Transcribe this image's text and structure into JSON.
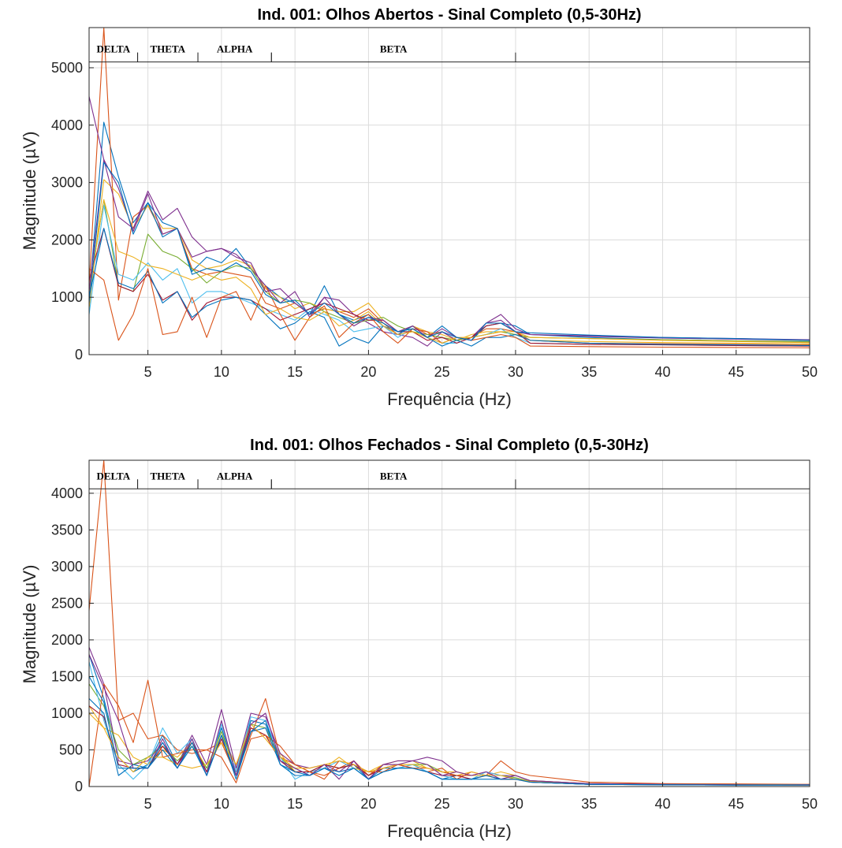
{
  "chart_data": [
    {
      "type": "line",
      "title": "Ind. 001: Olhos Abertos - Sinal Completo (0,5-30Hz)",
      "xlabel": "Frequência (Hz)",
      "ylabel": "Magnitude (µV)",
      "xlim": [
        1,
        50
      ],
      "ylim": [
        0,
        5700
      ],
      "xticks": [
        5,
        10,
        15,
        20,
        25,
        30,
        35,
        40,
        45,
        50
      ],
      "yticks": [
        0,
        1000,
        2000,
        3000,
        4000,
        5000
      ],
      "grid": true,
      "bands": [
        {
          "label": "DELTA",
          "from": 1,
          "to": 4.3
        },
        {
          "label": "THETA",
          "from": 4.3,
          "to": 8.4
        },
        {
          "label": "ALPHA",
          "from": 8.4,
          "to": 13.4
        },
        {
          "label": "BETA",
          "from": 13.4,
          "to": 30
        }
      ],
      "band_line_y": 5100,
      "x": [
        1,
        2,
        3,
        4,
        5,
        6,
        7,
        8,
        9,
        10,
        11,
        12,
        13,
        14,
        15,
        16,
        17,
        18,
        19,
        20,
        21,
        22,
        23,
        24,
        25,
        26,
        27,
        28,
        29,
        30,
        31,
        35,
        40,
        45,
        50
      ],
      "series": [
        {
          "color": "#0072BD",
          "values": [
            1000,
            4050,
            3100,
            2300,
            2650,
            2300,
            2200,
            1450,
            1700,
            1600,
            1850,
            1500,
            1200,
            1000,
            900,
            700,
            1200,
            700,
            600,
            700,
            500,
            400,
            450,
            300,
            500,
            300,
            250,
            500,
            550,
            500,
            350,
            300,
            260,
            240,
            220
          ]
        },
        {
          "color": "#D95319",
          "values": [
            1200,
            5700,
            950,
            2400,
            2600,
            2100,
            2200,
            1500,
            1400,
            1450,
            1400,
            1350,
            900,
            800,
            900,
            700,
            800,
            750,
            650,
            800,
            550,
            350,
            500,
            350,
            400,
            250,
            300,
            450,
            450,
            400,
            250,
            200,
            190,
            180,
            170
          ]
        },
        {
          "color": "#EDB120",
          "values": [
            800,
            3050,
            2800,
            2200,
            2600,
            2200,
            2200,
            1650,
            1500,
            1550,
            1650,
            1550,
            1150,
            1000,
            800,
            900,
            800,
            750,
            750,
            900,
            600,
            400,
            500,
            400,
            350,
            250,
            350,
            400,
            400,
            350,
            250,
            230,
            210,
            200,
            190
          ]
        },
        {
          "color": "#7E2F8E",
          "values": [
            4500,
            3400,
            2400,
            2200,
            2850,
            2350,
            2550,
            2050,
            1800,
            1850,
            1750,
            1500,
            1200,
            900,
            1100,
            650,
            1000,
            950,
            700,
            550,
            400,
            350,
            300,
            150,
            400,
            250,
            300,
            550,
            700,
            450,
            350,
            330,
            300,
            280,
            260
          ]
        },
        {
          "color": "#77AC30",
          "values": [
            1100,
            2700,
            1200,
            1100,
            2100,
            1800,
            1700,
            1500,
            1250,
            1450,
            1550,
            1500,
            1100,
            900,
            950,
            900,
            750,
            650,
            550,
            600,
            650,
            500,
            400,
            350,
            300,
            250,
            300,
            350,
            400,
            350,
            300,
            280,
            260,
            240,
            230
          ]
        },
        {
          "color": "#4DBEEE",
          "values": [
            700,
            2600,
            1400,
            1300,
            1600,
            1300,
            1500,
            900,
            1100,
            1100,
            1000,
            900,
            800,
            700,
            600,
            800,
            700,
            600,
            400,
            450,
            500,
            300,
            450,
            300,
            200,
            200,
            300,
            350,
            450,
            300,
            200,
            180,
            170,
            160,
            150
          ]
        },
        {
          "color": "#A2142F",
          "values": [
            1300,
            2200,
            1200,
            1100,
            1400,
            950,
            1100,
            600,
            900,
            1000,
            1000,
            950,
            800,
            600,
            700,
            800,
            900,
            800,
            700,
            600,
            600,
            400,
            400,
            250,
            300,
            200,
            300,
            500,
            550,
            400,
            200,
            180,
            170,
            160,
            150
          ]
        },
        {
          "color": "#0072BD",
          "values": [
            1000,
            2200,
            1250,
            1150,
            1450,
            900,
            1100,
            650,
            850,
            950,
            1000,
            950,
            700,
            450,
            550,
            750,
            650,
            150,
            300,
            200,
            500,
            350,
            500,
            300,
            150,
            250,
            150,
            300,
            300,
            350,
            250,
            200,
            180,
            170,
            160
          ]
        },
        {
          "color": "#D95319",
          "values": [
            1500,
            1300,
            250,
            700,
            1500,
            350,
            400,
            1000,
            300,
            1000,
            1100,
            600,
            1200,
            700,
            250,
            650,
            850,
            300,
            550,
            700,
            400,
            200,
            450,
            400,
            200,
            300,
            250,
            300,
            350,
            300,
            150,
            140,
            130,
            125,
            120
          ]
        },
        {
          "color": "#EDB120",
          "values": [
            1100,
            2700,
            1800,
            1700,
            1550,
            1500,
            1400,
            1300,
            1400,
            1300,
            1350,
            1150,
            700,
            800,
            650,
            600,
            750,
            500,
            600,
            750,
            500,
            350,
            400,
            300,
            200,
            300,
            300,
            350,
            400,
            400,
            300,
            280,
            250,
            230,
            210
          ]
        },
        {
          "color": "#7E2F8E",
          "values": [
            1100,
            3400,
            2900,
            2150,
            2800,
            2100,
            2200,
            1700,
            1800,
            1850,
            1700,
            1600,
            1100,
            1150,
            900,
            700,
            1000,
            700,
            500,
            650,
            600,
            400,
            500,
            300,
            450,
            300,
            250,
            550,
            600,
            400,
            350,
            320,
            290,
            270,
            250
          ]
        },
        {
          "color": "#0072BD",
          "values": [
            900,
            3350,
            3000,
            2100,
            2650,
            2050,
            2200,
            1400,
            1500,
            1450,
            1600,
            1450,
            1050,
            900,
            950,
            700,
            900,
            700,
            550,
            650,
            550,
            400,
            450,
            300,
            400,
            300,
            250,
            550,
            550,
            400,
            380,
            340,
            300,
            280,
            250
          ]
        }
      ]
    },
    {
      "type": "line",
      "title": "Ind. 001: Olhos Fechados - Sinal Completo (0,5-30Hz)",
      "xlabel": "Frequência (Hz)",
      "ylabel": "Magnitude (µV)",
      "xlim": [
        1,
        50
      ],
      "ylim": [
        0,
        4450
      ],
      "xticks": [
        5,
        10,
        15,
        20,
        25,
        30,
        35,
        40,
        45,
        50
      ],
      "yticks": [
        0,
        500,
        1000,
        1500,
        2000,
        2500,
        3000,
        3500,
        4000
      ],
      "grid": true,
      "bands": [
        {
          "label": "DELTA",
          "from": 1,
          "to": 4.3
        },
        {
          "label": "THETA",
          "from": 4.3,
          "to": 8.4
        },
        {
          "label": "ALPHA",
          "from": 8.4,
          "to": 13.4
        },
        {
          "label": "BETA",
          "from": 13.4,
          "to": 30
        }
      ],
      "band_line_y": 4060,
      "x": [
        1,
        2,
        3,
        4,
        5,
        6,
        7,
        8,
        9,
        10,
        11,
        12,
        13,
        14,
        15,
        16,
        17,
        18,
        19,
        20,
        21,
        22,
        23,
        24,
        25,
        26,
        27,
        28,
        29,
        30,
        31,
        35,
        40,
        45,
        50
      ],
      "series": [
        {
          "color": "#0072BD",
          "values": [
            1800,
            1200,
            400,
            200,
            300,
            700,
            300,
            650,
            200,
            800,
            200,
            900,
            850,
            350,
            250,
            150,
            300,
            250,
            300,
            100,
            250,
            250,
            300,
            200,
            100,
            150,
            100,
            150,
            100,
            100,
            60,
            30,
            25,
            20,
            20
          ]
        },
        {
          "color": "#D95319",
          "values": [
            2400,
            4450,
            900,
            1000,
            650,
            700,
            500,
            450,
            500,
            600,
            150,
            700,
            1200,
            400,
            300,
            200,
            150,
            250,
            350,
            150,
            300,
            300,
            250,
            200,
            250,
            100,
            200,
            150,
            350,
            200,
            150,
            60,
            40,
            35,
            30
          ]
        },
        {
          "color": "#EDB120",
          "values": [
            1100,
            800,
            700,
            400,
            300,
            500,
            400,
            600,
            250,
            700,
            300,
            800,
            700,
            450,
            200,
            200,
            250,
            400,
            250,
            200,
            300,
            350,
            350,
            250,
            200,
            150,
            200,
            150,
            200,
            150,
            80,
            40,
            30,
            25,
            25
          ]
        },
        {
          "color": "#7E2F8E",
          "values": [
            1900,
            1400,
            350,
            300,
            350,
            600,
            300,
            700,
            300,
            1050,
            250,
            1000,
            950,
            450,
            300,
            250,
            300,
            200,
            350,
            100,
            300,
            350,
            350,
            400,
            350,
            200,
            150,
            200,
            150,
            150,
            80,
            40,
            30,
            25,
            25
          ]
        },
        {
          "color": "#77AC30",
          "values": [
            1400,
            1100,
            500,
            300,
            400,
            550,
            350,
            550,
            250,
            750,
            200,
            850,
            800,
            400,
            200,
            200,
            300,
            250,
            300,
            150,
            250,
            300,
            300,
            300,
            200,
            150,
            150,
            150,
            150,
            120,
            70,
            35,
            30,
            25,
            20
          ]
        },
        {
          "color": "#4DBEEE",
          "values": [
            1700,
            900,
            300,
            100,
            300,
            800,
            450,
            650,
            150,
            850,
            200,
            950,
            900,
            400,
            100,
            200,
            250,
            350,
            250,
            100,
            200,
            250,
            300,
            200,
            150,
            100,
            100,
            200,
            150,
            100,
            60,
            30,
            25,
            20,
            20
          ]
        },
        {
          "color": "#A2142F",
          "values": [
            1100,
            950,
            300,
            250,
            250,
            550,
            300,
            600,
            200,
            650,
            150,
            800,
            700,
            350,
            200,
            200,
            300,
            250,
            300,
            150,
            250,
            300,
            250,
            200,
            150,
            150,
            100,
            150,
            100,
            100,
            60,
            30,
            25,
            20,
            20
          ]
        },
        {
          "color": "#0072BD",
          "values": [
            1200,
            1000,
            150,
            300,
            250,
            500,
            250,
            600,
            150,
            700,
            150,
            750,
            800,
            300,
            150,
            150,
            250,
            200,
            250,
            100,
            200,
            250,
            250,
            200,
            100,
            100,
            100,
            100,
            100,
            100,
            60,
            30,
            25,
            20,
            20
          ]
        },
        {
          "color": "#D95319",
          "values": [
            0,
            1400,
            1100,
            600,
            1450,
            400,
            450,
            500,
            500,
            400,
            50,
            650,
            700,
            550,
            300,
            200,
            100,
            350,
            300,
            200,
            200,
            300,
            250,
            250,
            200,
            150,
            150,
            150,
            100,
            100,
            60,
            40,
            30,
            25,
            20
          ]
        },
        {
          "color": "#EDB120",
          "values": [
            1000,
            800,
            400,
            200,
            400,
            400,
            300,
            250,
            300,
            600,
            300,
            850,
            650,
            400,
            250,
            250,
            300,
            350,
            300,
            200,
            250,
            300,
            300,
            250,
            200,
            200,
            150,
            150,
            150,
            100,
            70,
            35,
            30,
            25,
            20
          ]
        },
        {
          "color": "#7E2F8E",
          "values": [
            1800,
            1350,
            900,
            250,
            250,
            650,
            250,
            650,
            150,
            900,
            150,
            850,
            1000,
            350,
            250,
            150,
            300,
            100,
            350,
            100,
            300,
            300,
            350,
            300,
            150,
            200,
            150,
            200,
            100,
            150,
            80,
            40,
            30,
            25,
            20
          ]
        },
        {
          "color": "#0072BD",
          "values": [
            1500,
            1150,
            250,
            250,
            250,
            600,
            250,
            550,
            150,
            700,
            100,
            750,
            900,
            300,
            200,
            150,
            250,
            150,
            250,
            100,
            200,
            250,
            250,
            200,
            100,
            100,
            100,
            150,
            100,
            100,
            60,
            30,
            25,
            20,
            20
          ]
        }
      ]
    }
  ]
}
